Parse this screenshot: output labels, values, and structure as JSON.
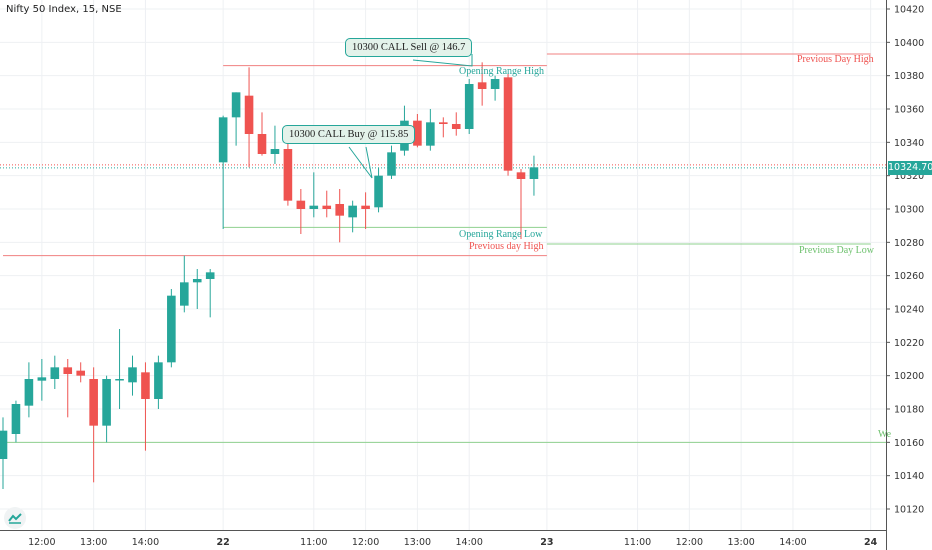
{
  "title": "Nifty 50 Index, 15, NSE",
  "colors": {
    "up": "#26a69a",
    "down": "#ef5350",
    "level_red": "#f08080",
    "level_green": "#8fd18f",
    "grid": "#eef0f3"
  },
  "chart_data": {
    "type": "candlestick",
    "ylim": [
      10110,
      10430
    ],
    "y_ticks": [
      10420,
      10400,
      10380,
      10360,
      10340,
      10320,
      10300,
      10280,
      10260,
      10240,
      10220,
      10200,
      10180,
      10160,
      10140,
      10120
    ],
    "x_ticks": [
      "12:00",
      "13:00",
      "14:00",
      "22",
      "11:00",
      "12:00",
      "13:00",
      "14:00",
      "23",
      "11:00",
      "12:00",
      "13:00",
      "14:00",
      "24"
    ],
    "x_tick_index": [
      3,
      7,
      11,
      17,
      24,
      28,
      32,
      36,
      42,
      49,
      53,
      57,
      61,
      67
    ],
    "n_slots": 71,
    "current_price": "10324.70",
    "candles": [
      {
        "i": 0,
        "o": 10150,
        "h": 10175,
        "l": 10132,
        "c": 10167
      },
      {
        "i": 1,
        "o": 10165,
        "h": 10185,
        "l": 10160,
        "c": 10183
      },
      {
        "i": 2,
        "o": 10182,
        "h": 10208,
        "l": 10175,
        "c": 10198
      },
      {
        "i": 3,
        "o": 10197,
        "h": 10210,
        "l": 10185,
        "c": 10199
      },
      {
        "i": 4,
        "o": 10198,
        "h": 10212,
        "l": 10192,
        "c": 10205
      },
      {
        "i": 5,
        "o": 10205,
        "h": 10210,
        "l": 10175,
        "c": 10201
      },
      {
        "i": 6,
        "o": 10203,
        "h": 10208,
        "l": 10196,
        "c": 10200
      },
      {
        "i": 7,
        "o": 10198,
        "h": 10205,
        "l": 10136,
        "c": 10170
      },
      {
        "i": 8,
        "o": 10170,
        "h": 10200,
        "l": 10160,
        "c": 10198
      },
      {
        "i": 9,
        "o": 10198,
        "h": 10228,
        "l": 10180,
        "c": 10198
      },
      {
        "i": 10,
        "o": 10196,
        "h": 10212,
        "l": 10188,
        "c": 10205
      },
      {
        "i": 11,
        "o": 10202,
        "h": 10208,
        "l": 10155,
        "c": 10186
      },
      {
        "i": 12,
        "o": 10186,
        "h": 10212,
        "l": 10180,
        "c": 10208
      },
      {
        "i": 13,
        "o": 10208,
        "h": 10252,
        "l": 10205,
        "c": 10248
      },
      {
        "i": 14,
        "o": 10242,
        "h": 10272,
        "l": 10238,
        "c": 10256
      },
      {
        "i": 15,
        "o": 10256,
        "h": 10264,
        "l": 10240,
        "c": 10258
      },
      {
        "i": 16,
        "o": 10258,
        "h": 10264,
        "l": 10235,
        "c": 10262
      },
      {
        "i": 17,
        "o": 10328,
        "h": 10356,
        "l": 10288,
        "c": 10355
      },
      {
        "i": 18,
        "o": 10355,
        "h": 10370,
        "l": 10338,
        "c": 10370
      },
      {
        "i": 19,
        "o": 10368,
        "h": 10385,
        "l": 10325,
        "c": 10345
      },
      {
        "i": 20,
        "o": 10345,
        "h": 10358,
        "l": 10332,
        "c": 10333
      },
      {
        "i": 21,
        "o": 10333,
        "h": 10350,
        "l": 10327,
        "c": 10336
      },
      {
        "i": 22,
        "o": 10336,
        "h": 10345,
        "l": 10302,
        "c": 10305
      },
      {
        "i": 23,
        "o": 10305,
        "h": 10312,
        "l": 10285,
        "c": 10300
      },
      {
        "i": 24,
        "o": 10300,
        "h": 10322,
        "l": 10295,
        "c": 10302
      },
      {
        "i": 25,
        "o": 10302,
        "h": 10311,
        "l": 10295,
        "c": 10300
      },
      {
        "i": 26,
        "o": 10303,
        "h": 10312,
        "l": 10280,
        "c": 10296
      },
      {
        "i": 27,
        "o": 10295,
        "h": 10305,
        "l": 10286,
        "c": 10302
      },
      {
        "i": 28,
        "o": 10302,
        "h": 10310,
        "l": 10288,
        "c": 10300
      },
      {
        "i": 29,
        "o": 10301,
        "h": 10325,
        "l": 10298,
        "c": 10320
      },
      {
        "i": 30,
        "o": 10320,
        "h": 10338,
        "l": 10318,
        "c": 10334
      },
      {
        "i": 31,
        "o": 10335,
        "h": 10362,
        "l": 10332,
        "c": 10353
      },
      {
        "i": 32,
        "o": 10353,
        "h": 10357,
        "l": 10337,
        "c": 10338
      },
      {
        "i": 33,
        "o": 10338,
        "h": 10360,
        "l": 10335,
        "c": 10352
      },
      {
        "i": 34,
        "o": 10352,
        "h": 10355,
        "l": 10343,
        "c": 10351
      },
      {
        "i": 35,
        "o": 10351,
        "h": 10358,
        "l": 10344,
        "c": 10348
      },
      {
        "i": 36,
        "o": 10348,
        "h": 10378,
        "l": 10345,
        "c": 10375
      },
      {
        "i": 37,
        "o": 10376,
        "h": 10388,
        "l": 10362,
        "c": 10372
      },
      {
        "i": 38,
        "o": 10372,
        "h": 10380,
        "l": 10365,
        "c": 10378
      },
      {
        "i": 39,
        "o": 10379,
        "h": 10381,
        "l": 10320,
        "c": 10323
      },
      {
        "i": 40,
        "o": 10322,
        "h": 10324,
        "l": 10282,
        "c": 10318
      },
      {
        "i": 41,
        "o": 10318,
        "h": 10332,
        "l": 10308,
        "c": 10325
      }
    ],
    "levels": [
      {
        "name": "opening-range-high",
        "value": 10386,
        "x_from": 17,
        "x_to": 42,
        "color": "#f08080"
      },
      {
        "name": "opening-range-low",
        "value": 10289,
        "x_from": 17,
        "x_to": 42,
        "color": "#8fd18f"
      },
      {
        "name": "previous-day-high-left",
        "value": 10272,
        "x_from": 0,
        "x_to": 42,
        "color": "#f08080"
      },
      {
        "name": "previous-day-high-right",
        "value": 10393,
        "x_from": 42,
        "x_to": 67,
        "color": "#f08080"
      },
      {
        "name": "previous-day-low-right",
        "value": 10279,
        "x_from": 42,
        "x_to": 67,
        "color": "#8fd18f"
      },
      {
        "name": "weekly-level",
        "value": 10160,
        "x_from": 0,
        "x_to": 71,
        "color": "#8fd18f"
      }
    ],
    "annotations": {
      "opening_range_high": "Opening Range High",
      "opening_range_low": "Opening Range  Low",
      "previous_day_high_left": "Previous day High",
      "previous_day_high_right": "Previous Day High",
      "previous_day_low_right": "Previous Day Low",
      "weekly_cut": "We",
      "call_sell": "10300 CALL Sell @ 146.7",
      "call_buy": "10300 CALL Buy @ 115.85"
    }
  }
}
